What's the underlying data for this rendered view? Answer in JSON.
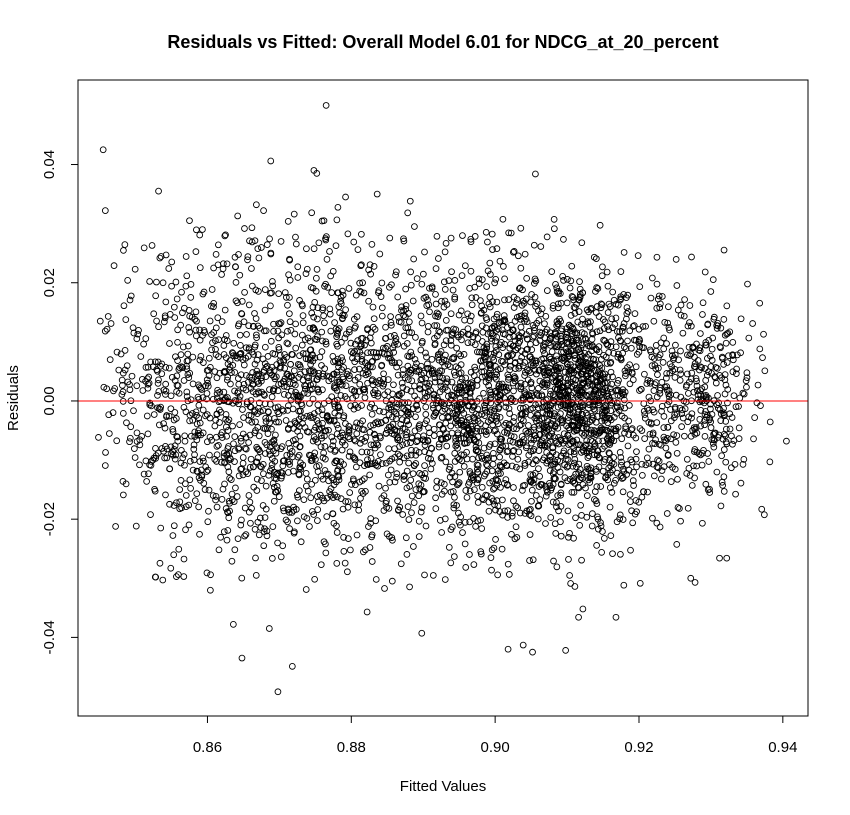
{
  "chart_data": {
    "type": "scatter",
    "title": "Residuals vs Fitted: Overall Model 6.01 for NDCG_at_20_percent",
    "xlabel": "Fitted Values",
    "ylabel": "Residuals",
    "xlim": [
      0.842,
      0.9435
    ],
    "ylim": [
      -0.0533,
      0.0543
    ],
    "x_ticks": [
      0.86,
      0.88,
      0.9,
      0.92,
      0.94
    ],
    "x_tick_labels": [
      "0.86",
      "0.88",
      "0.90",
      "0.92",
      "0.94"
    ],
    "y_ticks": [
      -0.04,
      -0.02,
      0.0,
      0.02,
      0.04
    ],
    "y_tick_labels": [
      "-0.04",
      "-0.02",
      "0.00",
      "0.02",
      "0.04"
    ],
    "reference_line": {
      "y": 0.0,
      "color": "#ff0000"
    },
    "point_color": "#000000",
    "grid": false,
    "n_points_approx": 4000,
    "points_listed": [
      [
        0.8455,
        0.0425
      ],
      [
        0.8458,
        0.0322
      ],
      [
        0.8462,
        0.0143
      ],
      [
        0.8466,
        0.0131
      ],
      [
        0.8481,
        0.0011
      ],
      [
        0.8483,
        -0.0021
      ],
      [
        0.8502,
        -0.0054
      ],
      [
        0.8512,
        0.0259
      ],
      [
        0.8521,
        0.0066
      ],
      [
        0.8526,
        -0.0023
      ],
      [
        0.8528,
        0.0178
      ],
      [
        0.8532,
        0.0355
      ],
      [
        0.8528,
        -0.0298
      ],
      [
        0.8535,
        -0.0215
      ],
      [
        0.8541,
        -0.0046
      ],
      [
        0.8549,
        -0.0283
      ],
      [
        0.8575,
        0.0305
      ],
      [
        0.8593,
        0.029
      ],
      [
        0.8612,
        0.0248
      ],
      [
        0.8642,
        0.0313
      ],
      [
        0.8648,
        -0.0435
      ],
      [
        0.8636,
        -0.0378
      ],
      [
        0.8668,
        0.0332
      ],
      [
        0.8678,
        0.0322
      ],
      [
        0.8688,
        0.0406
      ],
      [
        0.8686,
        -0.0385
      ],
      [
        0.8698,
        -0.0492
      ],
      [
        0.8718,
        -0.0449
      ],
      [
        0.8748,
        0.039
      ],
      [
        0.8752,
        0.0385
      ],
      [
        0.8762,
        0.0305
      ],
      [
        0.8765,
        0.05
      ],
      [
        0.8792,
        0.0345
      ],
      [
        0.8822,
        -0.0357
      ],
      [
        0.8836,
        0.035
      ],
      [
        0.8882,
        0.0338
      ],
      [
        0.8898,
        -0.0393
      ],
      [
        0.9018,
        -0.042
      ],
      [
        0.9039,
        -0.0413
      ],
      [
        0.9052,
        -0.0425
      ],
      [
        0.9056,
        0.0384
      ],
      [
        0.9098,
        -0.0422
      ],
      [
        0.9116,
        -0.0366
      ],
      [
        0.9122,
        -0.0352
      ],
      [
        0.9168,
        -0.0366
      ],
      [
        0.9272,
        -0.03
      ],
      [
        0.9278,
        -0.0307
      ],
      [
        0.9312,
        -0.0266
      ],
      [
        0.9322,
        -0.0266
      ],
      [
        0.9405,
        -0.0068
      ],
      [
        0.9382,
        -0.0103
      ],
      [
        0.9375,
        0.0051
      ],
      [
        0.9368,
        0.0088
      ],
      [
        0.9358,
        0.0131
      ],
      [
        0.9342,
        0.0139
      ],
      [
        0.9318,
        0.0138
      ]
    ],
    "density_clusters": [
      {
        "x_center": 0.8625,
        "x_sd": 0.0085,
        "y_sd": 0.013,
        "n": 850
      },
      {
        "x_center": 0.88,
        "x_sd": 0.0075,
        "y_sd": 0.0125,
        "n": 900
      },
      {
        "x_center": 0.898,
        "x_sd": 0.006,
        "y_sd": 0.012,
        "n": 1000
      },
      {
        "x_center": 0.912,
        "x_sd": 0.0048,
        "y_sd": 0.0105,
        "n": 1100
      },
      {
        "x_center": 0.928,
        "x_sd": 0.0045,
        "y_sd": 0.009,
        "n": 380
      }
    ]
  }
}
